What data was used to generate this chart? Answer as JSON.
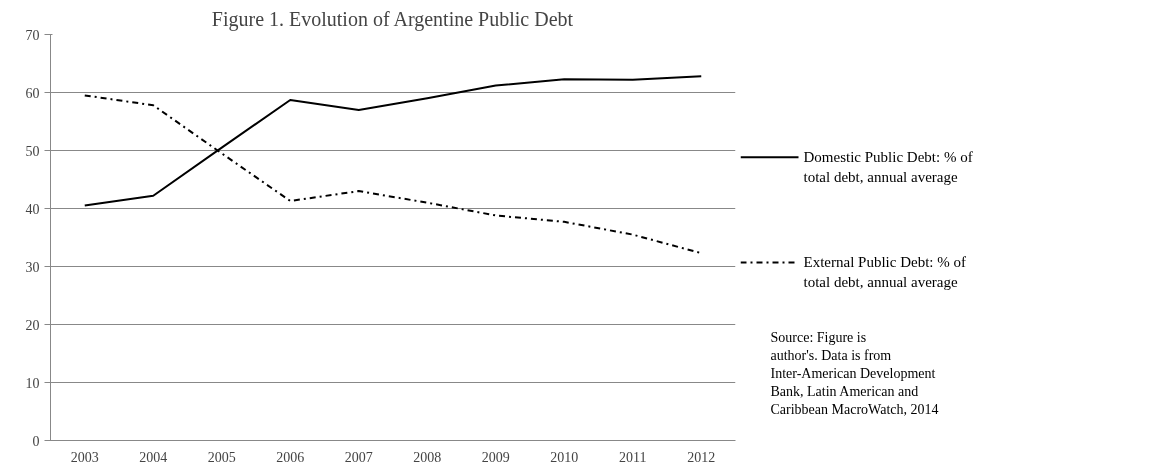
{
  "chart_data": {
    "type": "line",
    "title": "Figure 1. Evolution of Argentine Public Debt",
    "categories": [
      "2003",
      "2004",
      "2005",
      "2006",
      "2007",
      "2008",
      "2009",
      "2010",
      "2011",
      "2012"
    ],
    "series": [
      {
        "name": "Domestic Public Debt: % of total debt, annual average",
        "color": "#000000",
        "line_style": "solid",
        "values": [
          40.5,
          42.2,
          50.5,
          58.7,
          57.0,
          59.0,
          61.2,
          62.3,
          62.2,
          62.8
        ]
      },
      {
        "name": "External Public Debt: % of total debt, annual average",
        "color": "#000000",
        "line_style": "dashdot",
        "values": [
          59.5,
          57.8,
          49.5,
          41.3,
          43.0,
          41.0,
          38.8,
          37.7,
          35.5,
          32.3
        ]
      }
    ],
    "ylim": [
      0,
      70
    ],
    "yticks": [
      0,
      10,
      20,
      30,
      40,
      50,
      60,
      70
    ],
    "grid": "y",
    "legend": "right",
    "marker": "none",
    "annotations": [
      "Source: Figure is author's. Data is from Inter-American Development Bank, Latin American and Caribbean MacroWatch, 2014"
    ]
  }
}
